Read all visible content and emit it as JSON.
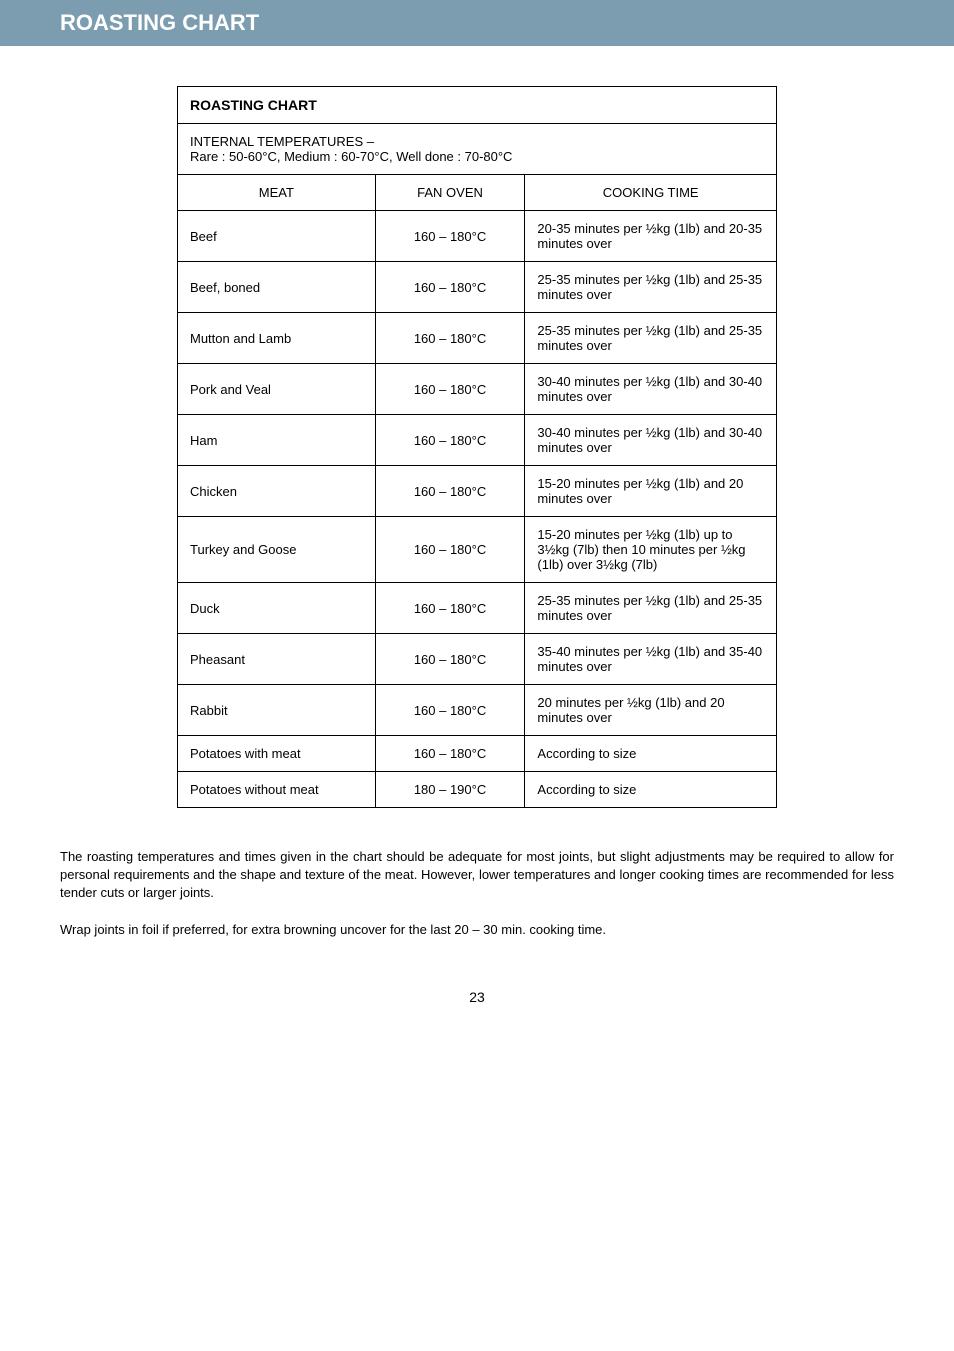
{
  "header": {
    "title": "ROASTING CHART"
  },
  "chart": {
    "title": "ROASTING CHART",
    "subtitle_line1": "INTERNAL TEMPERATURES –",
    "subtitle_line2": "Rare : 50-60°C, Medium : 60-70°C, Well done : 70-80°C",
    "columns": {
      "meat": "MEAT",
      "oven": "FAN OVEN",
      "time": "COOKING TIME"
    },
    "rows": [
      {
        "meat": "Beef",
        "oven": "160 – 180°C",
        "time": "20-35 minutes per ½kg (1lb) and 20-35 minutes over"
      },
      {
        "meat": "Beef, boned",
        "oven": "160 – 180°C",
        "time": "25-35 minutes per ½kg (1lb) and 25-35 minutes over"
      },
      {
        "meat": "Mutton and Lamb",
        "oven": "160 – 180°C",
        "time": "25-35 minutes per ½kg (1lb) and 25-35 minutes over"
      },
      {
        "meat": "Pork and Veal",
        "oven": "160 – 180°C",
        "time": "30-40 minutes per ½kg (1lb) and 30-40 minutes over"
      },
      {
        "meat": "Ham",
        "oven": "160 – 180°C",
        "time": "30-40 minutes per ½kg (1lb) and 30-40 minutes over"
      },
      {
        "meat": "Chicken",
        "oven": "160 – 180°C",
        "time": "15-20 minutes per ½kg (1lb) and 20 minutes over"
      },
      {
        "meat": "Turkey and Goose",
        "oven": "160 – 180°C",
        "time": "15-20 minutes per ½kg (1lb) up to 3½kg (7lb) then 10 minutes per ½kg (1lb) over  3½kg (7lb)"
      },
      {
        "meat": "Duck",
        "oven": "160 – 180°C",
        "time": "25-35 minutes per ½kg (1lb) and 25-35 minutes over"
      },
      {
        "meat": "Pheasant",
        "oven": "160 – 180°C",
        "time": "35-40 minutes per ½kg (1lb) and 35-40 minutes over"
      },
      {
        "meat": "Rabbit",
        "oven": "160 – 180°C",
        "time": "20 minutes per ½kg (1lb) and 20 minutes over"
      },
      {
        "meat": "Potatoes with meat",
        "oven": "160 – 180°C",
        "time": "According to size"
      },
      {
        "meat": "Potatoes without meat",
        "oven": "180 – 190°C",
        "time": "According to size"
      }
    ]
  },
  "notes": {
    "p1": "The roasting temperatures and times given in the chart should be adequate for most joints, but slight adjustments may be required to allow for personal requirements and the shape and texture of the meat.   However, lower temperatures and longer cooking times are recommended for less tender cuts or larger joints.",
    "p2": "Wrap joints in foil if preferred, for extra browning uncover for the last 20 – 30 min. cooking time."
  },
  "page_number": "23"
}
